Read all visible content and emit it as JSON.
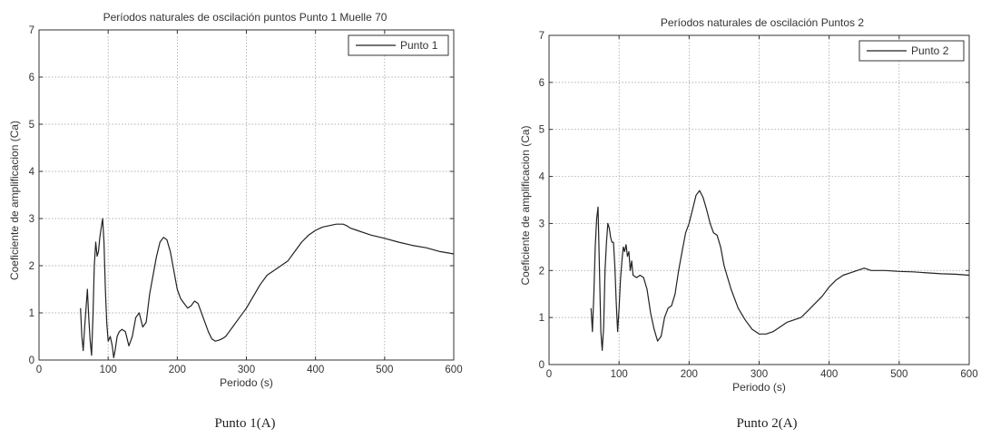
{
  "chart_data": [
    {
      "type": "line",
      "title": "Períodos naturales de oscilación puntos Punto 1 Muelle 70",
      "xlabel": "Periodo (s)",
      "ylabel": "Coeficiente de amplificacion (Ca)",
      "xlim": [
        0,
        600
      ],
      "ylim": [
        0,
        7
      ],
      "xticks": [
        0,
        100,
        200,
        300,
        400,
        500,
        600
      ],
      "yticks": [
        0,
        1,
        2,
        3,
        4,
        5,
        6,
        7
      ],
      "grid": true,
      "legend_position": "top-right",
      "caption": "Punto 1(A)",
      "series": [
        {
          "name": "Punto 1",
          "x": [
            60,
            62,
            64,
            66,
            68,
            70,
            72,
            74,
            76,
            78,
            80,
            82,
            84,
            86,
            88,
            90,
            92,
            94,
            96,
            98,
            100,
            103,
            106,
            108,
            110,
            113,
            116,
            120,
            125,
            130,
            135,
            140,
            145,
            150,
            155,
            160,
            165,
            170,
            175,
            180,
            185,
            190,
            195,
            200,
            205,
            210,
            215,
            220,
            225,
            230,
            235,
            240,
            245,
            250,
            255,
            260,
            265,
            270,
            275,
            280,
            290,
            300,
            310,
            320,
            330,
            340,
            350,
            360,
            370,
            380,
            390,
            400,
            410,
            420,
            430,
            440,
            445,
            450,
            460,
            480,
            500,
            520,
            540,
            560,
            580,
            600
          ],
          "y": [
            1.1,
            0.5,
            0.2,
            0.7,
            1.1,
            1.5,
            0.9,
            0.4,
            0.1,
            0.9,
            2.0,
            2.5,
            2.2,
            2.3,
            2.6,
            2.8,
            3.0,
            2.5,
            1.5,
            0.8,
            0.4,
            0.5,
            0.3,
            0.05,
            0.2,
            0.5,
            0.6,
            0.65,
            0.6,
            0.3,
            0.5,
            0.9,
            1.0,
            0.7,
            0.8,
            1.4,
            1.8,
            2.2,
            2.5,
            2.6,
            2.55,
            2.3,
            1.9,
            1.5,
            1.3,
            1.2,
            1.1,
            1.15,
            1.25,
            1.2,
            1.0,
            0.8,
            0.6,
            0.45,
            0.4,
            0.42,
            0.45,
            0.5,
            0.6,
            0.7,
            0.9,
            1.1,
            1.35,
            1.6,
            1.8,
            1.9,
            2.0,
            2.1,
            2.3,
            2.5,
            2.65,
            2.75,
            2.82,
            2.85,
            2.88,
            2.88,
            2.85,
            2.8,
            2.75,
            2.65,
            2.58,
            2.5,
            2.43,
            2.38,
            2.3,
            2.25
          ]
        }
      ]
    },
    {
      "type": "line",
      "title": "Períodos naturales de oscilación Puntos 2",
      "xlabel": "Periodo (s)",
      "ylabel": "Coeficiente de amplificacion (Ca)",
      "xlim": [
        0,
        600
      ],
      "ylim": [
        0,
        7
      ],
      "xticks": [
        0,
        100,
        200,
        300,
        400,
        500,
        600
      ],
      "yticks": [
        0,
        1,
        2,
        3,
        4,
        5,
        6,
        7
      ],
      "grid": true,
      "legend_position": "top-right",
      "caption": "Punto 2(A)",
      "series": [
        {
          "name": "Punto 2",
          "x": [
            60,
            62,
            64,
            66,
            68,
            70,
            72,
            74,
            76,
            78,
            80,
            82,
            84,
            86,
            88,
            90,
            92,
            94,
            96,
            98,
            100,
            102,
            104,
            106,
            108,
            110,
            112,
            114,
            116,
            118,
            120,
            125,
            130,
            135,
            140,
            145,
            150,
            155,
            160,
            165,
            170,
            175,
            180,
            185,
            190,
            195,
            200,
            205,
            210,
            215,
            220,
            225,
            230,
            235,
            240,
            245,
            250,
            260,
            270,
            280,
            290,
            300,
            310,
            320,
            330,
            340,
            350,
            360,
            370,
            380,
            390,
            400,
            410,
            420,
            430,
            440,
            450,
            460,
            480,
            500,
            520,
            540,
            560,
            580,
            600
          ],
          "y": [
            1.2,
            0.7,
            1.5,
            2.5,
            3.1,
            3.35,
            2.0,
            0.7,
            0.3,
            0.8,
            2.0,
            2.6,
            3.0,
            2.9,
            2.7,
            2.6,
            2.6,
            2.1,
            1.3,
            0.7,
            1.2,
            1.8,
            2.2,
            2.5,
            2.4,
            2.55,
            2.3,
            2.4,
            2.0,
            2.2,
            1.9,
            1.85,
            1.9,
            1.85,
            1.6,
            1.1,
            0.75,
            0.5,
            0.6,
            1.0,
            1.2,
            1.25,
            1.5,
            2.0,
            2.4,
            2.8,
            3.0,
            3.3,
            3.6,
            3.7,
            3.55,
            3.3,
            3.0,
            2.8,
            2.75,
            2.5,
            2.1,
            1.6,
            1.2,
            0.95,
            0.75,
            0.65,
            0.65,
            0.7,
            0.8,
            0.9,
            0.95,
            1.0,
            1.15,
            1.3,
            1.45,
            1.65,
            1.8,
            1.9,
            1.95,
            2.0,
            2.05,
            2.0,
            2.0,
            1.98,
            1.97,
            1.95,
            1.93,
            1.92,
            1.9
          ]
        }
      ]
    }
  ]
}
